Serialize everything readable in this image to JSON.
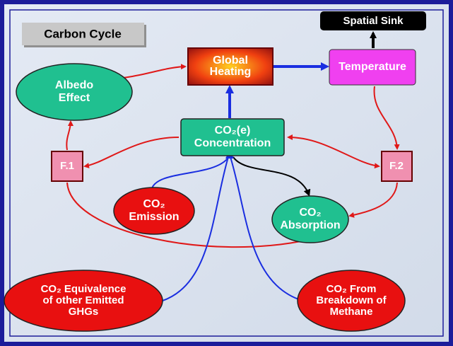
{
  "header": {
    "title": "Carbon Cycle"
  },
  "nodes": [
    {
      "id": "sink",
      "lines": [
        "Spatial  Sink"
      ]
    },
    {
      "id": "heating",
      "lines": [
        "Global",
        "Heating"
      ]
    },
    {
      "id": "temperature",
      "lines": [
        "Temperature"
      ]
    },
    {
      "id": "albedo",
      "lines": [
        "Albedo",
        "Effect"
      ]
    },
    {
      "id": "concentration",
      "lines": [
        "CO₂(e)",
        "Concentration"
      ]
    },
    {
      "id": "f1",
      "lines": [
        "F.1"
      ]
    },
    {
      "id": "f2",
      "lines": [
        "F.2"
      ]
    },
    {
      "id": "emission",
      "lines": [
        "CO₂",
        "Emission"
      ]
    },
    {
      "id": "absorption",
      "lines": [
        "CO₂",
        "Absorption"
      ]
    },
    {
      "id": "equivalence",
      "lines": [
        "CO₂ Equivalence",
        "of other Emitted",
        "GHGs"
      ]
    },
    {
      "id": "methane",
      "lines": [
        "CO₂ From",
        "Breakdown of",
        "Methane"
      ]
    }
  ]
}
